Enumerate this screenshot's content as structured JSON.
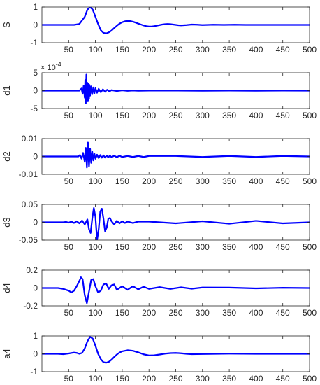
{
  "colors": {
    "line": "#0000ff",
    "axes": "#262626",
    "background": "#ffffff"
  },
  "chart_data": [
    {
      "type": "line",
      "ylabel": "S",
      "xlim": [
        0,
        500
      ],
      "ylim": [
        -1,
        1
      ],
      "xticks": [
        "50",
        "100",
        "150",
        "200",
        "250",
        "300",
        "350",
        "400",
        "450",
        "500"
      ],
      "yticks": [
        "1",
        "0",
        "-1"
      ],
      "exponent": "",
      "series": [
        {
          "x": [
            1,
            60,
            70,
            80,
            85,
            90,
            95,
            100,
            105,
            110,
            115,
            120,
            125,
            130,
            135,
            140,
            145,
            150,
            155,
            160,
            165,
            170,
            175,
            180,
            185,
            190,
            195,
            200,
            205,
            210,
            215,
            220,
            225,
            230,
            235,
            240,
            245,
            250,
            255,
            260,
            270,
            280,
            290,
            300,
            320,
            340,
            360,
            380,
            400,
            420,
            440,
            460,
            480,
            500
          ],
          "y": [
            0,
            0,
            0.05,
            0.45,
            0.85,
            1.0,
            0.85,
            0.45,
            0.05,
            -0.3,
            -0.45,
            -0.48,
            -0.42,
            -0.32,
            -0.18,
            -0.05,
            0.07,
            0.15,
            0.2,
            0.22,
            0.21,
            0.18,
            0.13,
            0.07,
            0.02,
            -0.03,
            -0.07,
            -0.09,
            -0.09,
            -0.07,
            -0.04,
            -0.01,
            0.02,
            0.04,
            0.05,
            0.04,
            0.02,
            0.0,
            -0.02,
            -0.03,
            -0.01,
            0.02,
            0.01,
            -0.01,
            0.01,
            0.0,
            0.01,
            0.0,
            0.0,
            0.0,
            0.0,
            0.0,
            0.0,
            0.0
          ]
        }
      ]
    },
    {
      "type": "line",
      "ylabel": "d1",
      "xlim": [
        0,
        500
      ],
      "ylim": [
        -5,
        5
      ],
      "xticks": [
        "50",
        "100",
        "150",
        "200",
        "250",
        "300",
        "350",
        "400",
        "450",
        "500"
      ],
      "yticks": [
        "5",
        "0",
        "-5"
      ],
      "exponent": "10^-4",
      "series": [
        {
          "x": [
            1,
            70,
            74,
            76,
            78,
            80,
            81,
            82,
            83,
            84,
            85,
            86,
            87,
            88,
            89,
            90,
            92,
            94,
            96,
            98,
            100,
            103,
            106,
            110,
            114,
            118,
            122,
            126,
            130,
            140,
            150,
            160,
            170,
            180,
            200,
            250,
            300,
            350,
            400,
            450,
            500
          ],
          "y": [
            0,
            0,
            0.6,
            -0.9,
            1.4,
            -2.0,
            3.0,
            -3.6,
            4.5,
            -2.5,
            2.2,
            -2.8,
            1.9,
            -2.3,
            1.6,
            -1.4,
            1.2,
            -1.0,
            0.9,
            -0.8,
            0.7,
            -0.6,
            0.5,
            -0.45,
            0.35,
            -0.3,
            0.25,
            -0.2,
            0.15,
            -0.1,
            0.08,
            -0.06,
            0.05,
            -0.04,
            0.03,
            0.02,
            -0.02,
            0.02,
            -0.02,
            0.01,
            0
          ]
        }
      ]
    },
    {
      "type": "line",
      "ylabel": "d2",
      "xlim": [
        0,
        500
      ],
      "ylim": [
        -0.01,
        0.01
      ],
      "xticks": [
        "50",
        "100",
        "150",
        "200",
        "250",
        "300",
        "350",
        "400",
        "450",
        "500"
      ],
      "yticks": [
        "0.01",
        "0",
        "-0.01"
      ],
      "exponent": "",
      "series": [
        {
          "x": [
            1,
            68,
            71,
            74,
            77,
            80,
            82,
            84,
            86,
            88,
            90,
            92,
            94,
            96,
            98,
            100,
            103,
            106,
            109,
            112,
            115,
            118,
            121,
            124,
            127,
            130,
            135,
            140,
            145,
            150,
            160,
            170,
            180,
            190,
            200,
            250,
            300,
            350,
            400,
            450,
            500
          ],
          "y": [
            0,
            0,
            0.0008,
            -0.0012,
            0.002,
            -0.003,
            0.0048,
            -0.0062,
            0.0078,
            -0.0055,
            0.0044,
            -0.0036,
            0.0028,
            -0.0022,
            0.0017,
            -0.0013,
            0.001,
            -0.0009,
            0.0008,
            -0.0007,
            0.0006,
            -0.0006,
            0.0005,
            -0.0005,
            0.0005,
            -0.0004,
            0.0004,
            -0.0004,
            0.0004,
            -0.0003,
            0.0003,
            -0.0003,
            0.0003,
            -0.0003,
            0.0003,
            0.0003,
            -0.0003,
            0.0003,
            -0.0003,
            0.0003,
            0
          ]
        }
      ]
    },
    {
      "type": "line",
      "ylabel": "d3",
      "xlim": [
        0,
        500
      ],
      "ylim": [
        -0.05,
        0.05
      ],
      "xticks": [
        "50",
        "100",
        "150",
        "200",
        "250",
        "300",
        "350",
        "400",
        "450",
        "500"
      ],
      "yticks": [
        "0.05",
        "0",
        "-0.05"
      ],
      "exponent": "",
      "series": [
        {
          "x": [
            1,
            40,
            45,
            50,
            55,
            60,
            65,
            70,
            75,
            80,
            85,
            88,
            91,
            94,
            97,
            100,
            103,
            106,
            109,
            112,
            115,
            118,
            121,
            124,
            127,
            130,
            135,
            140,
            145,
            150,
            155,
            160,
            170,
            180,
            200,
            250,
            300,
            350,
            400,
            450,
            500
          ],
          "y": [
            0,
            0,
            0.001,
            -0.001,
            0.002,
            -0.002,
            0.003,
            -0.003,
            0.005,
            -0.006,
            0.008,
            -0.02,
            -0.03,
            0.01,
            0.04,
            0.015,
            -0.05,
            -0.02,
            0.03,
            0.038,
            0.01,
            -0.025,
            -0.015,
            0.01,
            0.012,
            0.003,
            -0.006,
            0.004,
            -0.003,
            0.003,
            -0.002,
            0.002,
            -0.002,
            0.002,
            0.002,
            -0.003,
            0.003,
            -0.004,
            0.004,
            -0.003,
            0
          ]
        }
      ]
    },
    {
      "type": "line",
      "ylabel": "d4",
      "xlim": [
        0,
        500
      ],
      "ylim": [
        -0.2,
        0.2
      ],
      "xticks": [
        "50",
        "100",
        "150",
        "200",
        "250",
        "300",
        "350",
        "400",
        "450",
        "500"
      ],
      "yticks": [
        "0.2",
        "0",
        "-0.2"
      ],
      "exponent": "",
      "series": [
        {
          "x": [
            1,
            30,
            40,
            50,
            55,
            60,
            65,
            70,
            73,
            76,
            80,
            84,
            88,
            92,
            96,
            100,
            105,
            110,
            115,
            120,
            125,
            130,
            135,
            140,
            150,
            160,
            170,
            180,
            190,
            200,
            220,
            240,
            260,
            280,
            300,
            350,
            400,
            450,
            500
          ],
          "y": [
            0,
            0,
            -0.01,
            -0.03,
            -0.05,
            -0.03,
            0.02,
            0.08,
            0.12,
            0.1,
            -0.08,
            -0.17,
            -0.04,
            0.09,
            0.1,
            0.02,
            -0.05,
            -0.03,
            0.04,
            0.05,
            -0.01,
            0.03,
            0.04,
            -0.02,
            0.02,
            -0.02,
            0.02,
            -0.015,
            0.015,
            -0.01,
            0.01,
            -0.01,
            0.008,
            -0.008,
            0.006,
            0.005,
            -0.004,
            0.003,
            0
          ]
        }
      ]
    },
    {
      "type": "line",
      "ylabel": "a4",
      "xlim": [
        0,
        500
      ],
      "ylim": [
        -1,
        1
      ],
      "xticks": [
        "50",
        "100",
        "150",
        "200",
        "250",
        "300",
        "350",
        "400",
        "450",
        "500"
      ],
      "yticks": [
        "1",
        "0",
        "-1"
      ],
      "exponent": "",
      "series": [
        {
          "x": [
            1,
            30,
            40,
            50,
            60,
            65,
            70,
            75,
            80,
            85,
            90,
            95,
            100,
            105,
            110,
            115,
            120,
            125,
            130,
            135,
            140,
            145,
            150,
            160,
            170,
            180,
            190,
            200,
            210,
            220,
            230,
            240,
            250,
            260,
            270,
            280,
            300,
            350,
            400,
            450,
            500
          ],
          "y": [
            0,
            0,
            -0.02,
            0.02,
            0.07,
            0.05,
            0.0,
            0.05,
            0.3,
            0.7,
            0.95,
            0.85,
            0.45,
            0.0,
            -0.3,
            -0.47,
            -0.5,
            -0.45,
            -0.33,
            -0.18,
            -0.04,
            0.07,
            0.14,
            0.2,
            0.17,
            0.08,
            -0.03,
            -0.09,
            -0.08,
            -0.04,
            0.01,
            0.04,
            0.05,
            0.03,
            0.0,
            -0.02,
            -0.01,
            0.01,
            0.0,
            0.0,
            0.0
          ]
        }
      ]
    }
  ]
}
